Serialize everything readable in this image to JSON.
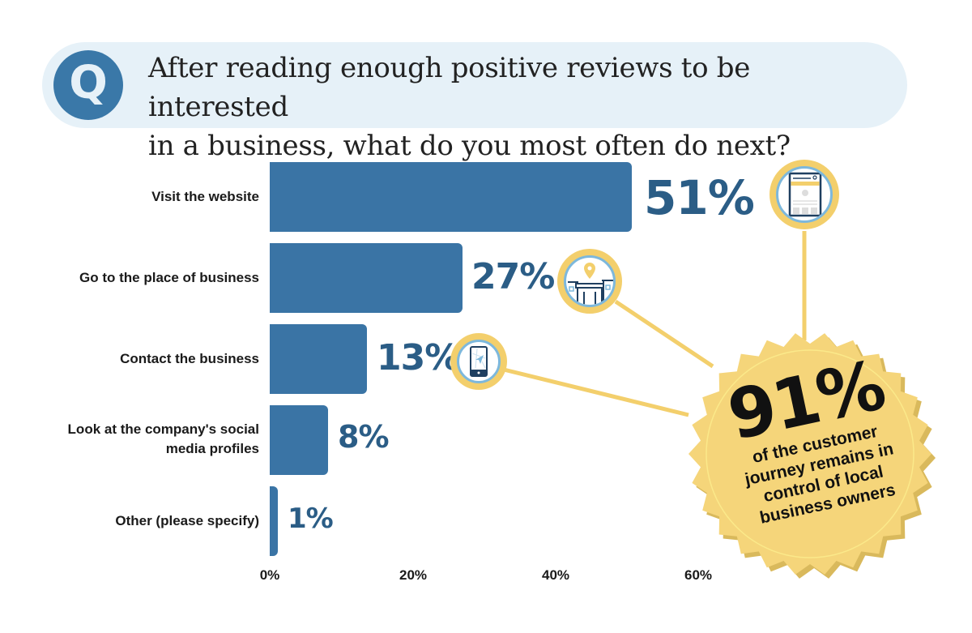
{
  "question": {
    "icon": "Q",
    "line1": "After reading enough positive reviews to be interested",
    "line2": "in a business, what do you most often do next?"
  },
  "chart_data": {
    "type": "bar",
    "orientation": "horizontal",
    "title": "After reading enough positive reviews to be interested in a business, what do you most often do next?",
    "categories": [
      "Visit the website",
      "Go to the place of business",
      "Contact the business",
      "Look at the company's social media profiles",
      "Other (please specify)"
    ],
    "values": [
      51,
      27,
      13,
      8,
      1
    ],
    "value_labels": [
      "51%",
      "27%",
      "13%",
      "8%",
      "1%"
    ],
    "xlabel": "",
    "ylabel": "",
    "xlim": [
      0,
      60
    ],
    "x_ticks": [
      "0%",
      "20%",
      "40%",
      "60%"
    ],
    "grid": false,
    "bar_color": "#3a74a5",
    "annotation": {
      "value": "91%",
      "text": "of the customer journey remains in control of local business owners",
      "color": "#f3cf6c"
    }
  },
  "labels": {
    "l0": "Visit the website",
    "l1": "Go to the place of business",
    "l2": "Contact the business",
    "l3a": "Look at the company's social",
    "l3b": "media profiles",
    "l4": "Other (please specify)"
  },
  "values": {
    "v0": "51%",
    "v1": "27%",
    "v2": "13%",
    "v3": "8%",
    "v4": "1%"
  },
  "ticks": {
    "t0": "0%",
    "t1": "20%",
    "t2": "40%",
    "t3": "60%"
  },
  "badge": {
    "value": "91%",
    "line1": "of the customer",
    "line2": "journey remains in",
    "line3": "control of local",
    "line4": "business owners"
  }
}
